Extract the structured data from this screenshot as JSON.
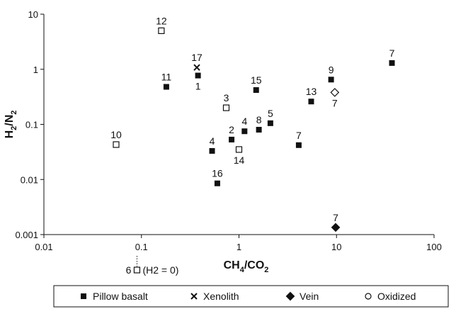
{
  "chart_data": {
    "type": "scatter",
    "x_scale": "log",
    "y_scale": "log",
    "xlim": [
      0.01,
      100
    ],
    "ylim": [
      0.001,
      10
    ],
    "x_ticks": [
      "0.01",
      "0.1",
      "1",
      "10",
      "100"
    ],
    "y_ticks": [
      "0.001",
      "0.01",
      "0.1",
      "1",
      "10"
    ],
    "x_tick_values": [
      0.01,
      0.1,
      1,
      10,
      100
    ],
    "y_tick_values": [
      0.001,
      0.01,
      0.1,
      1,
      10
    ],
    "xlabel": {
      "main": "CH",
      "s1": "4",
      "mid": "/CO",
      "s2": "2"
    },
    "ylabel": {
      "main": "H",
      "s1": "2",
      "mid": "/N",
      "s2": "2"
    },
    "grid": false,
    "legend_position": "bottom",
    "legend": [
      {
        "marker": "filled-square",
        "label": "Pillow basalt"
      },
      {
        "marker": "x-cross",
        "label": "Xenolith"
      },
      {
        "marker": "filled-diamond",
        "label": "Vein"
      },
      {
        "marker": "open-marker",
        "label": "Oxidized"
      }
    ],
    "off_scale_point": {
      "label": "6",
      "note": "(H2 = 0)",
      "x": 0.09,
      "marker": "open-square"
    },
    "points": [
      {
        "label": "12",
        "x": 0.16,
        "y": 5.0,
        "marker": "open-square",
        "label_pos": "above"
      },
      {
        "label": "17",
        "x": 0.37,
        "y": 1.08,
        "marker": "x-cross",
        "label_pos": "above"
      },
      {
        "label": "1",
        "x": 0.38,
        "y": 0.77,
        "marker": "filled-square",
        "label_pos": "below"
      },
      {
        "label": "11",
        "x": 0.18,
        "y": 0.48,
        "marker": "filled-square",
        "label_pos": "above"
      },
      {
        "label": "3",
        "x": 0.74,
        "y": 0.2,
        "marker": "open-square",
        "label_pos": "above"
      },
      {
        "label": "10",
        "x": 0.055,
        "y": 0.043,
        "marker": "open-square",
        "label_pos": "above"
      },
      {
        "label": "4",
        "x": 0.53,
        "y": 0.033,
        "marker": "filled-square",
        "label_pos": "above"
      },
      {
        "label": "2",
        "x": 0.84,
        "y": 0.053,
        "marker": "filled-square",
        "label_pos": "above"
      },
      {
        "label": "14",
        "x": 1.0,
        "y": 0.035,
        "marker": "open-square",
        "label_pos": "below"
      },
      {
        "label": "4",
        "x": 1.14,
        "y": 0.075,
        "marker": "filled-square",
        "label_pos": "above"
      },
      {
        "label": "8",
        "x": 1.6,
        "y": 0.08,
        "marker": "filled-square",
        "label_pos": "above"
      },
      {
        "label": "5",
        "x": 2.1,
        "y": 0.105,
        "marker": "filled-square",
        "label_pos": "above"
      },
      {
        "label": "16",
        "x": 0.6,
        "y": 0.0085,
        "marker": "filled-square",
        "label_pos": "above"
      },
      {
        "label": "15",
        "x": 1.5,
        "y": 0.42,
        "marker": "filled-square",
        "label_pos": "above"
      },
      {
        "label": "7",
        "x": 4.1,
        "y": 0.042,
        "marker": "filled-square",
        "label_pos": "above"
      },
      {
        "label": "13",
        "x": 5.5,
        "y": 0.26,
        "marker": "filled-square",
        "label_pos": "above"
      },
      {
        "label": "9",
        "x": 8.8,
        "y": 0.65,
        "marker": "filled-square",
        "label_pos": "above"
      },
      {
        "label": "7",
        "x": 9.6,
        "y": 0.38,
        "marker": "open-diamond",
        "label_pos": "below"
      },
      {
        "label": "7",
        "x": 37,
        "y": 1.3,
        "marker": "filled-square",
        "label_pos": "above"
      },
      {
        "label": "7",
        "x": 9.8,
        "y": 0.00135,
        "marker": "filled-diamond",
        "label_pos": "above"
      }
    ]
  }
}
